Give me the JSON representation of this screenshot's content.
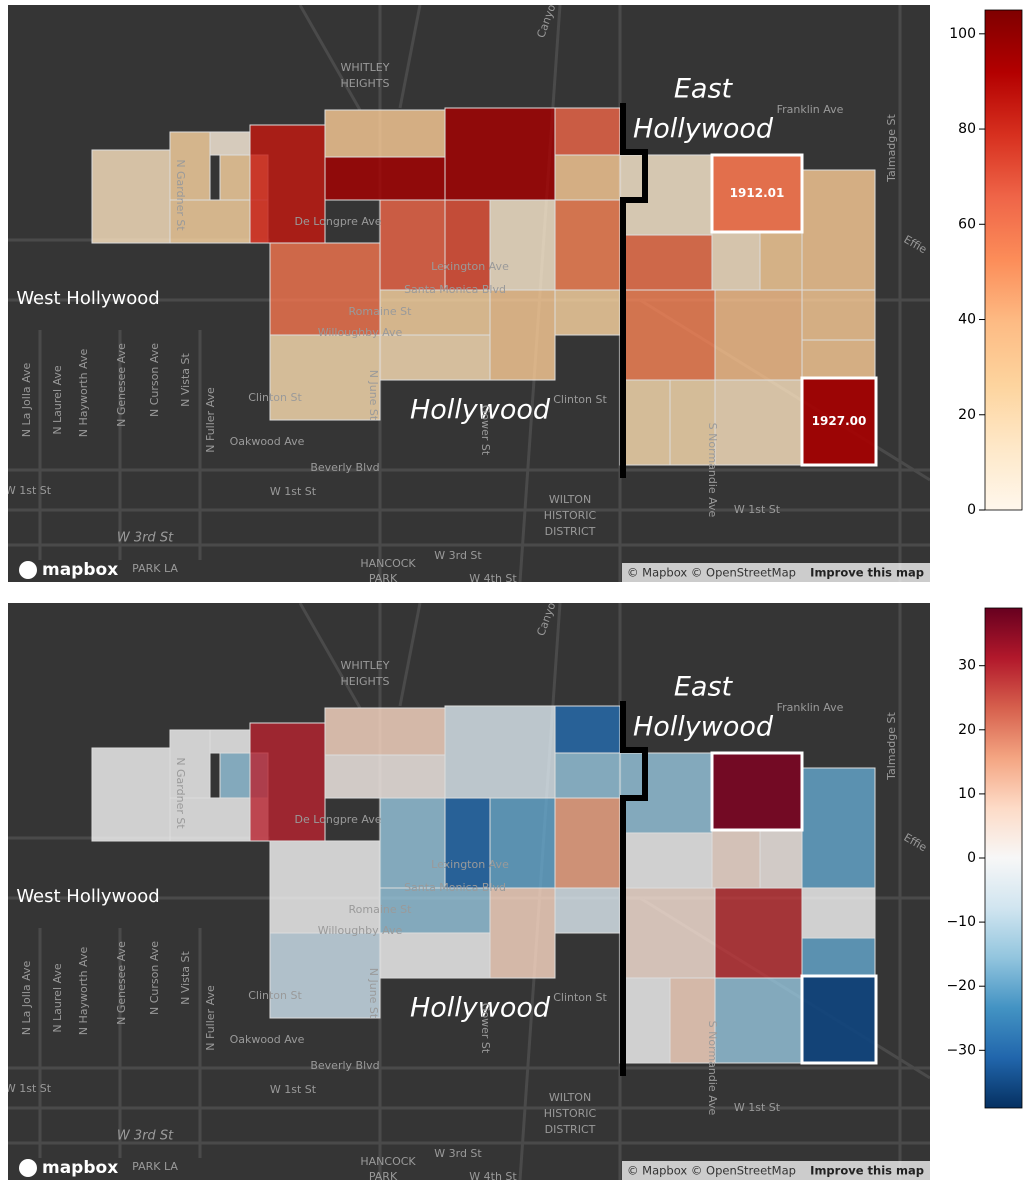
{
  "base_labels": [
    "WHITLEY",
    "HEIGHTS",
    "East",
    "Hollywood",
    "Franklin Ave",
    "Talmadge St",
    "West Hollywood",
    "De Longpre Ave",
    "Lexington Ave",
    "Santa Monica Blvd",
    "Romaine St",
    "Willoughby Ave",
    "Hollywood",
    "Clinton St",
    "Clinton St",
    "Oakwood Ave",
    "Beverly Blvd",
    "W 1st St",
    "W 1st St",
    "W 1st St",
    "WILTON",
    "HISTORIC",
    "DISTRICT",
    "W 3rd St",
    "W 3rd St",
    "HANCOCK",
    "PARK",
    "PARK LA",
    "W 4th St",
    "N Gardner St",
    "N La Jolla Ave",
    "N Laurel Ave",
    "N Hayworth Ave",
    "N Genesee Ave",
    "N Curson Ave",
    "N Vista St",
    "N Fuller Ave",
    "Gower St",
    "N June St",
    "S Normandie Ave",
    "Effie",
    "Canyon"
  ],
  "attribution": {
    "logo": "mapbox",
    "copyright": "© Mapbox © OpenStreetMap",
    "improve": "Improve this map"
  },
  "panels": [
    {
      "colormap": "OrRd",
      "clim": [
        0,
        105
      ],
      "ticks": [
        0,
        20,
        40,
        60,
        80,
        100
      ],
      "tract_values": [
        15,
        25,
        5,
        25,
        25,
        85,
        30,
        95,
        95,
        65,
        30,
        60,
        65,
        70,
        10,
        55,
        25,
        30,
        25,
        20,
        18,
        10,
        60,
        12,
        28,
        30,
        55,
        35,
        30,
        30,
        20,
        20,
        15
      ],
      "highlights": [
        {
          "label": "1912.01",
          "value": 60
        },
        {
          "label": "1927.00",
          "value": 95
        }
      ]
    },
    {
      "colormap": "RdBu_r",
      "clim": [
        -39,
        39
      ],
      "ticks": [
        {
          "value": -30,
          "label": "−30"
        },
        {
          "value": -20,
          "label": "−20"
        },
        {
          "value": -10,
          "label": "−10"
        },
        0,
        10,
        20,
        30
      ],
      "tract_values": [
        0,
        0,
        0,
        -15,
        0,
        30,
        8,
        2,
        -5,
        -30,
        -15,
        0,
        -15,
        -30,
        -20,
        15,
        -15,
        8,
        -5,
        -8,
        0,
        -15,
        0,
        5,
        2,
        -20,
        5,
        28,
        0,
        -20,
        0,
        8,
        -15
      ],
      "highlights": [
        {
          "label": "1912.01",
          "value": 37
        },
        {
          "label": "1927.00",
          "value": -36
        }
      ]
    }
  ]
}
